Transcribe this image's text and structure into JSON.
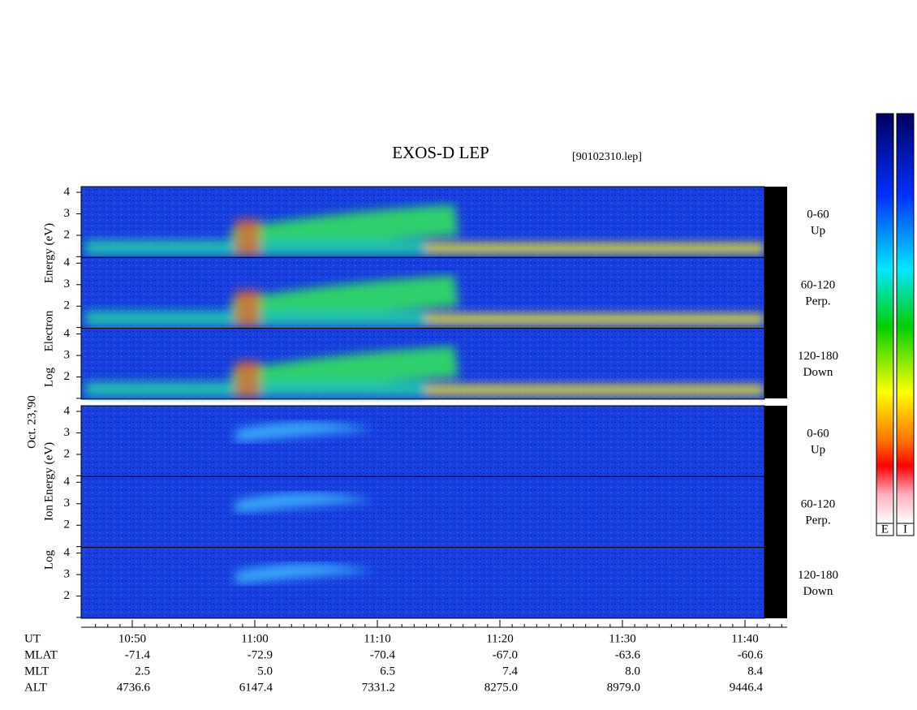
{
  "header": {
    "title": "EXOS-D LEP",
    "file": "[90102310.lep]"
  },
  "date": "Oct. 23,'90",
  "yticks": [
    "4",
    "3",
    "2"
  ],
  "electron": {
    "axis_words": [
      "Log",
      "Electron",
      "Energy (eV)"
    ],
    "panels": [
      {
        "angle": "0-60",
        "direction": "Up"
      },
      {
        "angle": "60-120",
        "direction": "Perp."
      },
      {
        "angle": "120-180",
        "direction": "Down"
      }
    ]
  },
  "ion": {
    "axis_words": [
      "Log",
      "Ion",
      "Energy (eV)"
    ],
    "panels": [
      {
        "angle": "0-60",
        "direction": "Up"
      },
      {
        "angle": "60-120",
        "direction": "Perp."
      },
      {
        "angle": "120-180",
        "direction": "Down"
      }
    ]
  },
  "footer": {
    "rows": [
      {
        "name": "UT",
        "values": [
          "10:50",
          "11:00",
          "11:10",
          "11:20",
          "11:30",
          "11:40"
        ]
      },
      {
        "name": "MLAT",
        "values": [
          "-71.4",
          "-72.9",
          "-70.4",
          "-67.0",
          "-63.6",
          "-60.6"
        ]
      },
      {
        "name": "MLT",
        "values": [
          "2.5",
          "5.0",
          "6.5",
          "7.4",
          "8.0",
          "8.4"
        ]
      },
      {
        "name": "ALT",
        "values": [
          "4736.6",
          "6147.4",
          "7331.2",
          "8275.0",
          "8979.0",
          "9446.4"
        ]
      }
    ]
  },
  "colorbars": [
    "E",
    "I"
  ]
}
